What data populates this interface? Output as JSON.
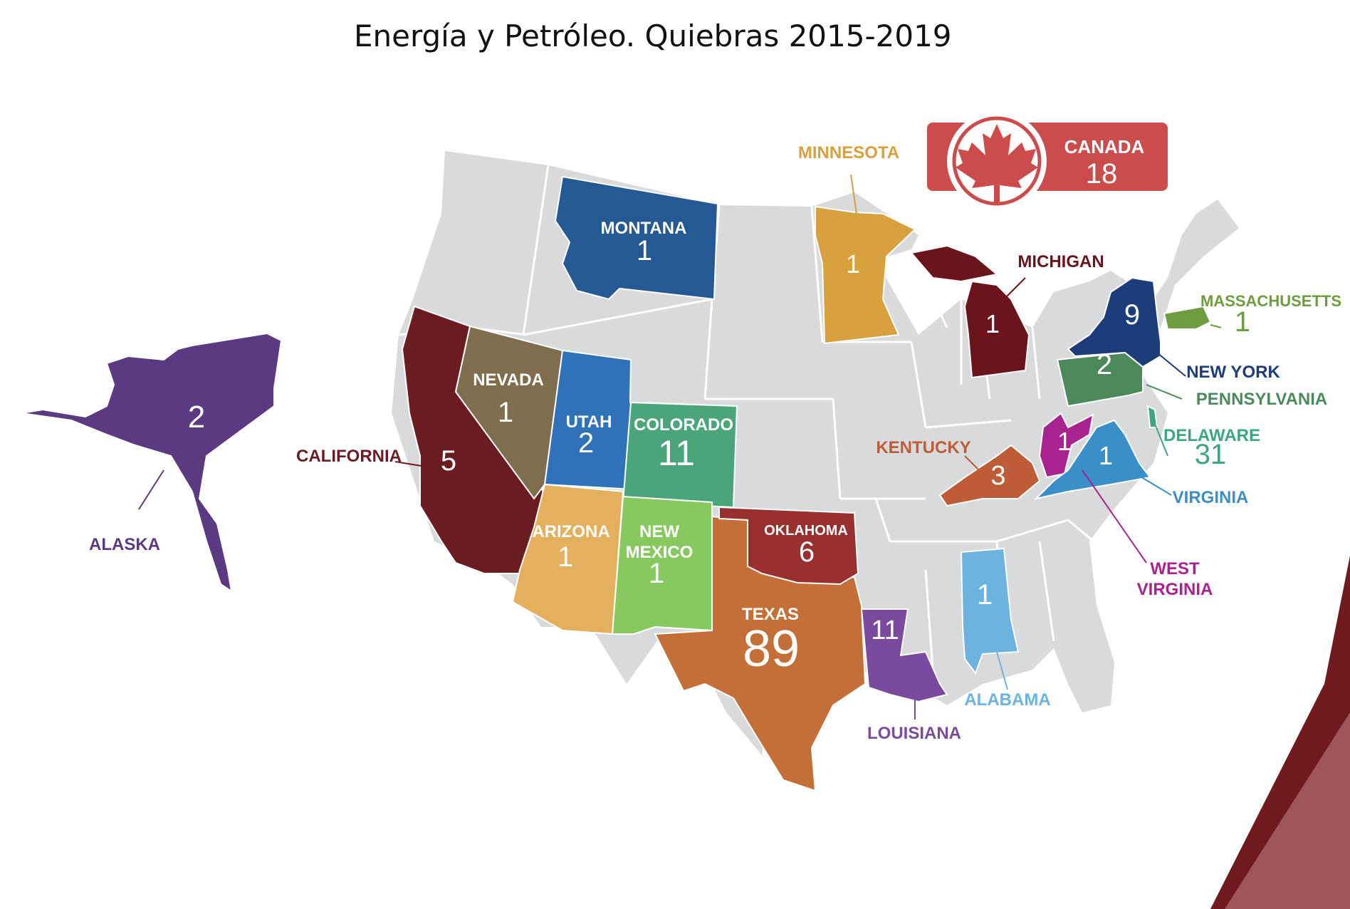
{
  "title": "Energía y Petróleo. Quiebras 2015-2019",
  "colors": {
    "base_state": "#d9dadc",
    "state_border": "#ffffff",
    "corner_accent": "#6e1a1e",
    "canada_box": "#cc4b4b"
  },
  "canada": {
    "label": "CANADA",
    "value": "18",
    "icon": "maple-leaf-icon"
  },
  "states": [
    {
      "key": "alaska",
      "label": "ALASKA",
      "value": "2",
      "color": "#5a3a80"
    },
    {
      "key": "california",
      "label": "CALIFORNIA",
      "value": "5",
      "color": "#6b1c21"
    },
    {
      "key": "nevada",
      "label": "NEVADA",
      "value": "1",
      "color": "#7f6e4d"
    },
    {
      "key": "utah",
      "label": "UTAH",
      "value": "2",
      "color": "#2f72b9"
    },
    {
      "key": "colorado",
      "label": "COLORADO",
      "value": "11",
      "color": "#4aa57b"
    },
    {
      "key": "arizona",
      "label": "ARIZONA",
      "value": "1",
      "color": "#e4b05e"
    },
    {
      "key": "new_mexico",
      "label": "NEW MEXICO",
      "value": "1",
      "color": "#87c85f"
    },
    {
      "key": "texas",
      "label": "TEXAS",
      "value": "89",
      "color": "#c36f37"
    },
    {
      "key": "oklahoma",
      "label": "OKLAHOMA",
      "value": "6",
      "color": "#9a2f2f"
    },
    {
      "key": "montana",
      "label": "MONTANA",
      "value": "1",
      "color": "#255994"
    },
    {
      "key": "minnesota",
      "label": "MINNESOTA",
      "value": "1",
      "color": "#d9a03e"
    },
    {
      "key": "michigan",
      "label": "MICHIGAN",
      "value": "1",
      "color": "#6b141c"
    },
    {
      "key": "louisiana",
      "label": "LOUISIANA",
      "value": "11",
      "color": "#7a4a9e"
    },
    {
      "key": "alabama",
      "label": "ALABAMA",
      "value": "1",
      "color": "#6db3e0"
    },
    {
      "key": "kentucky",
      "label": "KENTUCKY",
      "value": "3",
      "color": "#bd5c36"
    },
    {
      "key": "west_virginia",
      "label": "WEST VIRGINIA",
      "value": "1",
      "color": "#a8238e"
    },
    {
      "key": "virginia",
      "label": "VIRGINIA",
      "value": "1",
      "color": "#3a8fc8"
    },
    {
      "key": "pennsylvania",
      "label": "PENNSYLVANIA",
      "value": "2",
      "color": "#4c8a5c"
    },
    {
      "key": "new_york",
      "label": "NEW YORK",
      "value": "9",
      "color": "#1d3c7a"
    },
    {
      "key": "massachusetts",
      "label": "MASSACHUSETTS",
      "value": "1",
      "color": "#6e9c3e"
    },
    {
      "key": "delaware",
      "label": "DELAWARE",
      "value": "31",
      "color": "#3ea583"
    }
  ]
}
